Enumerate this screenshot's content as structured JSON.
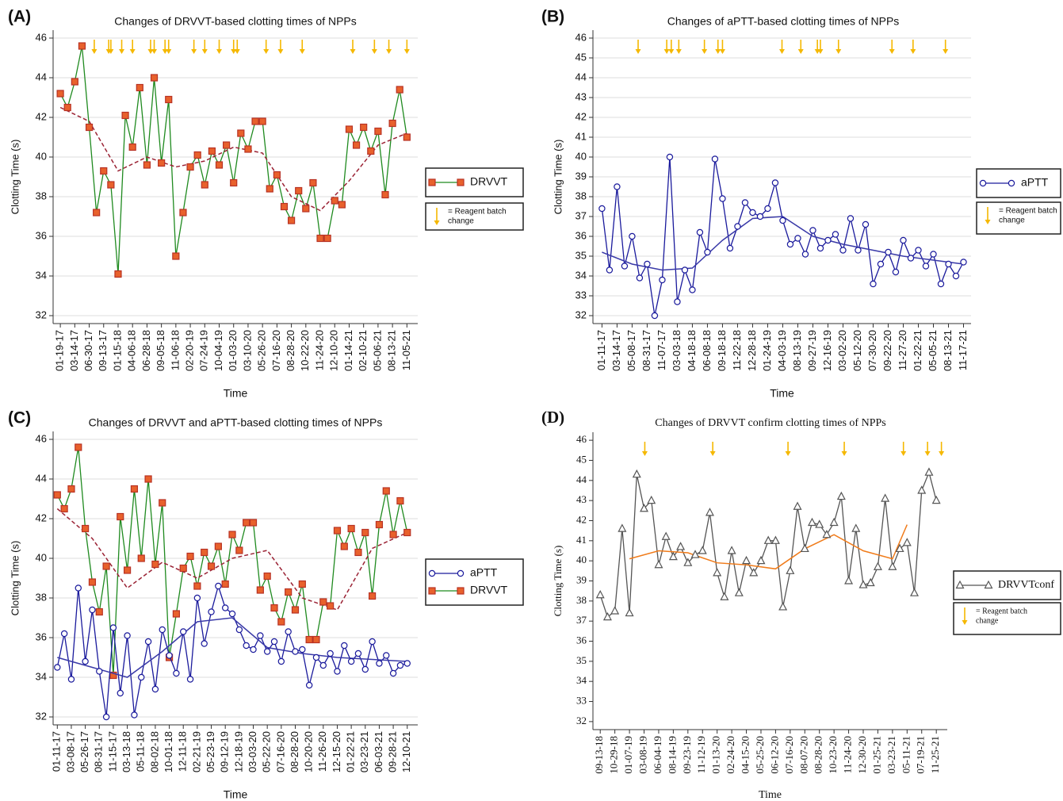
{
  "chart_data": [
    {
      "type": "line",
      "panel": "(A)",
      "title": "Changes of DRVVT-based clotting times of NPPs",
      "x_label": "Time",
      "y_label": "Clotting Time (s)",
      "xlim": [
        -1,
        49.5
      ],
      "ylim": [
        31.6,
        46.4
      ],
      "yticks": [
        32,
        34,
        36,
        38,
        40,
        42,
        44,
        46
      ],
      "grid": true,
      "xticks": [
        {
          "value": 0,
          "label": "01-19-17"
        },
        {
          "value": 2,
          "label": "03-14-17"
        },
        {
          "value": 4,
          "label": "06-30-17"
        },
        {
          "value": 6,
          "label": "09-13-17"
        },
        {
          "value": 8,
          "label": "01-15-18"
        },
        {
          "value": 10,
          "label": "04-06-18"
        },
        {
          "value": 12,
          "label": "06-28-18"
        },
        {
          "value": 14,
          "label": "09-05-18"
        },
        {
          "value": 16,
          "label": "11-06-18"
        },
        {
          "value": 18,
          "label": "02-20-19"
        },
        {
          "value": 20,
          "label": "07-24-19"
        },
        {
          "value": 22,
          "label": "10-04-19"
        },
        {
          "value": 24,
          "label": "01-03-20"
        },
        {
          "value": 26,
          "label": "03-10-20"
        },
        {
          "value": 28,
          "label": "05-26-20"
        },
        {
          "value": 30,
          "label": "07-16-20"
        },
        {
          "value": 32,
          "label": "08-28-20"
        },
        {
          "value": 34,
          "label": "10-22-20"
        },
        {
          "value": 36,
          "label": "11-24-20"
        },
        {
          "value": 38,
          "label": "12-10-20"
        },
        {
          "value": 40,
          "label": "01-14-21"
        },
        {
          "value": 42,
          "label": "02-10-21"
        },
        {
          "value": 44,
          "label": "05-06-21"
        },
        {
          "value": 46,
          "label": "08-13-21"
        },
        {
          "value": 48,
          "label": "11-05-21"
        }
      ],
      "series": [
        {
          "name": "DRVVT",
          "color": "#1f8a1f",
          "marker": "square",
          "marker_color": "#e8612c",
          "values": [
            43.2,
            42.5,
            43.8,
            45.6,
            41.5,
            37.2,
            39.3,
            38.6,
            34.1,
            42.1,
            40.5,
            43.5,
            39.6,
            44,
            39.7,
            42.9,
            35,
            37.2,
            39.5,
            40.1,
            38.6,
            40.3,
            39.6,
            40.6,
            38.7,
            41.2,
            40.4,
            41.8,
            41.8,
            38.4,
            39.1,
            37.5,
            36.8,
            38.3,
            37.4,
            38.7,
            35.9,
            35.9,
            37.8,
            37.6,
            41.4,
            40.6,
            41.5,
            40.3,
            41.3,
            38.1,
            41.7,
            43.4,
            41
          ]
        }
      ],
      "trends": [
        {
          "color": "#9b2335",
          "dashed": true,
          "x": [
            0,
            4,
            8,
            12,
            16,
            20,
            24,
            28,
            32,
            36,
            40,
            44,
            48
          ],
          "values": [
            42.5,
            41.8,
            39.3,
            40,
            39.5,
            39.8,
            40.5,
            40.2,
            38,
            37.3,
            38.8,
            40.6,
            41.2
          ]
        }
      ],
      "reagent_changes": [
        4.7,
        6.7,
        7,
        8.5,
        10,
        12.5,
        13,
        14.5,
        15,
        18.5,
        20,
        22,
        24,
        24.5,
        28.5,
        30.5,
        33.5,
        40.5,
        43.5,
        45.5,
        48
      ],
      "arrow_color": "#f5b800",
      "reagent_label": [
        "= Reagent batch",
        "change"
      ]
    },
    {
      "type": "line",
      "panel": "(B)",
      "title": "Changes of aPTT-based clotting times of NPPs",
      "x_label": "Time",
      "y_label": "Clotting Time (s)",
      "xlim": [
        -1.2,
        49
      ],
      "ylim": [
        31.6,
        46.4
      ],
      "yticks": [
        32,
        33,
        34,
        35,
        36,
        37,
        38,
        39,
        40,
        41,
        42,
        43,
        44,
        45,
        46
      ],
      "grid": true,
      "xticks": [
        {
          "value": 0,
          "label": "01-11-17"
        },
        {
          "value": 2,
          "label": "03-14-17"
        },
        {
          "value": 4,
          "label": "05-08-17"
        },
        {
          "value": 6,
          "label": "08-31-17"
        },
        {
          "value": 8,
          "label": "11-07-17"
        },
        {
          "value": 10,
          "label": "03-03-18"
        },
        {
          "value": 12,
          "label": "04-18-18"
        },
        {
          "value": 14,
          "label": "06-08-18"
        },
        {
          "value": 16,
          "label": "09-18-18"
        },
        {
          "value": 18,
          "label": "11-22-18"
        },
        {
          "value": 20,
          "label": "12-28-18"
        },
        {
          "value": 22,
          "label": "01-24-19"
        },
        {
          "value": 24,
          "label": "04-03-19"
        },
        {
          "value": 26,
          "label": "08-13-19"
        },
        {
          "value": 28,
          "label": "09-27-19"
        },
        {
          "value": 30,
          "label": "12-16-19"
        },
        {
          "value": 32,
          "label": "03-02-20"
        },
        {
          "value": 34,
          "label": "05-12-20"
        },
        {
          "value": 36,
          "label": "07-30-20"
        },
        {
          "value": 38,
          "label": "09-22-20"
        },
        {
          "value": 40,
          "label": "11-27-20"
        },
        {
          "value": 42,
          "label": "01-22-21"
        },
        {
          "value": 44,
          "label": "05-05-21"
        },
        {
          "value": 46,
          "label": "08-13-21"
        },
        {
          "value": 48,
          "label": "11-17-21"
        }
      ],
      "series": [
        {
          "name": "aPTT",
          "color": "#1a1a9c",
          "marker": "circle",
          "marker_color": "#ffffff",
          "values": [
            37.4,
            34.3,
            38.5,
            34.5,
            36,
            33.9,
            34.6,
            32,
            33.8,
            40,
            32.7,
            34.3,
            33.3,
            36.2,
            35.2,
            39.9,
            37.9,
            35.4,
            36.5,
            37.7,
            37.2,
            37,
            37.4,
            38.7,
            36.8,
            35.6,
            35.9,
            35.1,
            36.3,
            35.4,
            35.8,
            36.1,
            35.3,
            36.9,
            35.3,
            36.6,
            33.6,
            34.6,
            35.2,
            34.2,
            35.8,
            34.9,
            35.3,
            34.5,
            35.1,
            33.6,
            34.6,
            34,
            34.7
          ]
        }
      ],
      "trends": [
        {
          "color": "#3a3aa8",
          "dashed": false,
          "x": [
            0,
            4,
            8,
            12,
            16,
            20,
            24,
            28,
            32,
            36,
            40,
            44,
            48
          ],
          "values": [
            35.2,
            34.6,
            34.3,
            34.4,
            35.8,
            36.9,
            37,
            36,
            35.6,
            35.3,
            35,
            34.8,
            34.6
          ]
        }
      ],
      "reagent_changes": [
        4.8,
        8.6,
        9.2,
        10.2,
        13.6,
        15.4,
        16,
        23.9,
        26.4,
        28.6,
        29,
        31.4,
        38.5,
        41.3,
        45.6
      ],
      "arrow_color": "#f5b800",
      "reagent_label": [
        "= Reagent batch",
        "change"
      ]
    },
    {
      "type": "line",
      "panel": "(C)",
      "title": "Changes of  DRVVT and aPTT-based clotting times of NPPs",
      "x_label": "Time",
      "y_label": "Clotting Time (s)",
      "xlim": [
        -0.6,
        51.5
      ],
      "ylim": [
        31.6,
        46.4
      ],
      "yticks": [
        32,
        34,
        36,
        38,
        40,
        42,
        44,
        46
      ],
      "grid": true,
      "xticks": [
        {
          "value": 0,
          "label": "01-11-17"
        },
        {
          "value": 2,
          "label": "03-08-17"
        },
        {
          "value": 4,
          "label": "05-26-17"
        },
        {
          "value": 6,
          "label": "08-31-17"
        },
        {
          "value": 8,
          "label": "11-15-17"
        },
        {
          "value": 10,
          "label": "03-13-18"
        },
        {
          "value": 12,
          "label": "05-11-18"
        },
        {
          "value": 14,
          "label": "08-02-18"
        },
        {
          "value": 16,
          "label": "10-01-18"
        },
        {
          "value": 18,
          "label": "12-11-18"
        },
        {
          "value": 20,
          "label": "02-21-19"
        },
        {
          "value": 22,
          "label": "05-23-19"
        },
        {
          "value": 24,
          "label": "09-12-19"
        },
        {
          "value": 26,
          "label": "12-18-19"
        },
        {
          "value": 28,
          "label": "03-03-20"
        },
        {
          "value": 30,
          "label": "05-22-20"
        },
        {
          "value": 32,
          "label": "07-16-20"
        },
        {
          "value": 34,
          "label": "08-28-20"
        },
        {
          "value": 36,
          "label": "10-20-20"
        },
        {
          "value": 38,
          "label": "11-26-20"
        },
        {
          "value": 40,
          "label": "12-15-20"
        },
        {
          "value": 42,
          "label": "01-22-21"
        },
        {
          "value": 44,
          "label": "03-23-21"
        },
        {
          "value": 46,
          "label": "06-03-21"
        },
        {
          "value": 48,
          "label": "09-28-21"
        },
        {
          "value": 50,
          "label": "12-10-21"
        }
      ],
      "series": [
        {
          "name": "aPTT",
          "color": "#1a1a9c",
          "marker": "circle",
          "marker_color": "#ffffff",
          "values": [
            34.5,
            36.2,
            33.9,
            38.5,
            34.8,
            37.4,
            34.3,
            32,
            36.5,
            33.2,
            36.1,
            32.1,
            34,
            35.8,
            33.4,
            36.4,
            35.1,
            34.2,
            36.3,
            33.9,
            38,
            35.7,
            37.3,
            38.6,
            37.5,
            37.2,
            36.4,
            35.6,
            35.4,
            36.1,
            35.3,
            35.8,
            34.8,
            36.3,
            35.3,
            35.4,
            33.6,
            35,
            34.6,
            35.2,
            34.3,
            35.6,
            34.8,
            35.2,
            34.4,
            35.8,
            34.7,
            35.1,
            34.2,
            34.6,
            34.7
          ]
        },
        {
          "name": "DRVVT",
          "color": "#1f8a1f",
          "marker": "square",
          "marker_color": "#e8612c",
          "values": [
            43.2,
            42.5,
            43.5,
            45.6,
            41.5,
            38.8,
            37.3,
            39.6,
            34.1,
            42.1,
            39.4,
            43.5,
            40,
            44,
            39.7,
            42.8,
            35,
            37.2,
            39.5,
            40.1,
            38.6,
            40.3,
            39.6,
            40.6,
            38.7,
            41.2,
            40.4,
            41.8,
            41.8,
            38.4,
            39.1,
            37.5,
            36.8,
            38.3,
            37.4,
            38.7,
            35.9,
            35.9,
            37.8,
            37.6,
            41.4,
            40.6,
            41.5,
            40.3,
            41.3,
            38.1,
            41.7,
            43.4,
            41.2,
            42.9,
            41.3
          ]
        }
      ],
      "trends": [
        {
          "color": "#3a3aa8",
          "dashed": false,
          "x": [
            0,
            5,
            10,
            15,
            20,
            25,
            30,
            35,
            40,
            45,
            50
          ],
          "values": [
            35,
            34.5,
            34,
            35.3,
            36.8,
            37,
            35.5,
            35.2,
            35,
            34.9,
            34.8
          ]
        },
        {
          "color": "#9b2335",
          "dashed": true,
          "x": [
            0,
            5,
            10,
            15,
            20,
            25,
            30,
            35,
            40,
            45,
            50
          ],
          "values": [
            42.5,
            41,
            38.5,
            39.8,
            39,
            40,
            40.4,
            38,
            37.4,
            40.5,
            41.3
          ]
        }
      ],
      "reagent_changes": [],
      "arrow_color": "#f5b800",
      "reagent_label": []
    },
    {
      "type": "line",
      "panel": "(D)",
      "title": "Changes of DRVVT confirm clotting times of NPPs",
      "x_label": "Time",
      "y_label": "Clotting Time (s)",
      "xlim": [
        -1,
        47.5
      ],
      "ylim": [
        31.6,
        46.4
      ],
      "yticks": [
        32,
        33,
        34,
        35,
        36,
        37,
        38,
        39,
        40,
        41,
        42,
        43,
        44,
        45,
        46
      ],
      "grid": false,
      "xticks": [
        {
          "value": 0,
          "label": "09-13-18"
        },
        {
          "value": 2,
          "label": "10-29-18"
        },
        {
          "value": 4,
          "label": "01-07-19"
        },
        {
          "value": 6,
          "label": "03-08-19"
        },
        {
          "value": 8,
          "label": "06-04-19"
        },
        {
          "value": 10,
          "label": "08-14-19"
        },
        {
          "value": 12,
          "label": "09-23-19"
        },
        {
          "value": 14,
          "label": "11-12-19"
        },
        {
          "value": 16,
          "label": "01-13-20"
        },
        {
          "value": 18,
          "label": "02-24-20"
        },
        {
          "value": 20,
          "label": "04-15-20"
        },
        {
          "value": 22,
          "label": "05-25-20"
        },
        {
          "value": 24,
          "label": "06-12-20"
        },
        {
          "value": 26,
          "label": "07-16-20"
        },
        {
          "value": 28,
          "label": "08-07-20"
        },
        {
          "value": 30,
          "label": "08-28-20"
        },
        {
          "value": 32,
          "label": "10-23-20"
        },
        {
          "value": 34,
          "label": "11-24-20"
        },
        {
          "value": 36,
          "label": "12-30-20"
        },
        {
          "value": 38,
          "label": "01-25-21"
        },
        {
          "value": 40,
          "label": "03-23-21"
        },
        {
          "value": 42,
          "label": "05-11-21"
        },
        {
          "value": 44,
          "label": "07-19-21"
        },
        {
          "value": 46,
          "label": "11-25-21"
        }
      ],
      "series": [
        {
          "name": "DRVVTconf",
          "color": "#555555",
          "marker": "triangle",
          "marker_color": "#ffffff",
          "values": [
            38.3,
            37.2,
            37.5,
            41.6,
            37.4,
            44.3,
            42.6,
            43,
            39.8,
            41.2,
            40.2,
            40.7,
            39.9,
            40.3,
            40.5,
            42.4,
            39.4,
            38.2,
            40.5,
            38.4,
            40,
            39.4,
            40,
            41,
            41,
            37.7,
            39.5,
            42.7,
            40.6,
            41.9,
            41.8,
            41.3,
            41.9,
            43.2,
            39,
            41.6,
            38.8,
            38.9,
            39.7,
            43.1,
            39.7,
            40.6,
            40.9,
            38.4,
            43.5,
            44.4,
            43
          ]
        }
      ],
      "trends": [
        {
          "color": "#f07b1a",
          "dashed": false,
          "x": [
            4,
            8,
            12,
            16,
            20,
            24,
            28,
            32,
            36,
            40,
            42
          ],
          "values": [
            40.1,
            40.5,
            40.4,
            39.9,
            39.8,
            39.6,
            40.6,
            41.3,
            40.5,
            40.1,
            41.8
          ]
        }
      ],
      "reagent_changes": [
        6.1,
        15.4,
        25.7,
        33.4,
        41.5,
        44.8,
        46.7
      ],
      "arrow_color": "#f5b800",
      "reagent_label": [
        "= Reagent batch",
        "change"
      ]
    }
  ]
}
